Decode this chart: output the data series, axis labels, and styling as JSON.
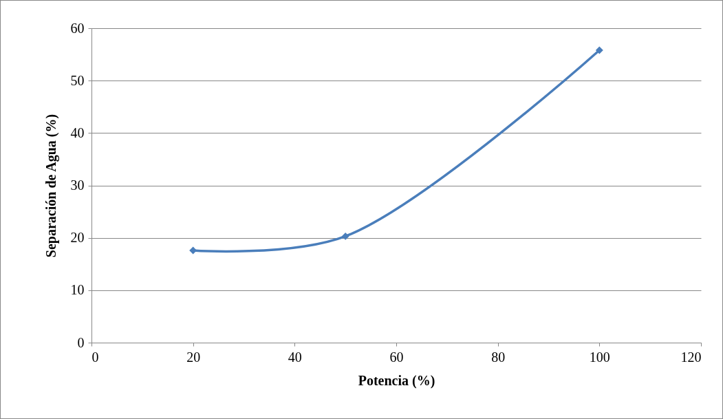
{
  "chart_data": {
    "type": "line",
    "xlabel": "Potencia (%)",
    "ylabel": "Separación de Agua (%)",
    "x": [
      20,
      50,
      100
    ],
    "series": [
      {
        "color": "#4a7ebb",
        "values": [
          17.6,
          20.3,
          55.8
        ]
      }
    ],
    "xlim": [
      0,
      120
    ],
    "xticks": [
      0,
      20,
      40,
      60,
      80,
      100,
      120
    ],
    "ylim": [
      0,
      60
    ],
    "yticks": [
      0,
      10,
      20,
      30,
      40,
      50,
      60
    ],
    "grid": "y",
    "marker": "diamond",
    "line_style": "solid"
  }
}
